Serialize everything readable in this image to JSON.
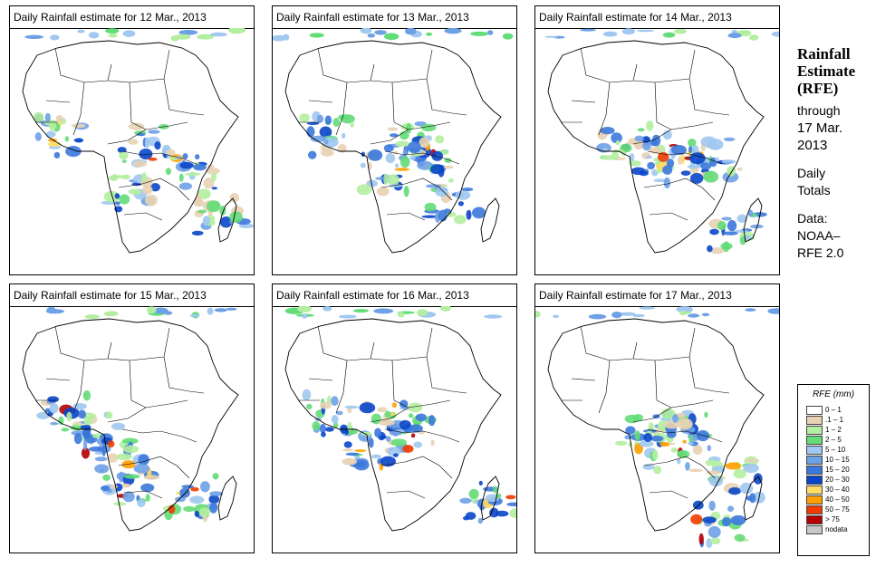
{
  "panels": [
    {
      "title": "Daily Rainfall estimate for  12 Mar., 2013",
      "day": 12
    },
    {
      "title": "Daily Rainfall estimate for  13 Mar., 2013",
      "day": 13
    },
    {
      "title": "Daily Rainfall estimate for  14 Mar., 2013",
      "day": 14
    },
    {
      "title": "Daily Rainfall estimate for  15 Mar., 2013",
      "day": 15
    },
    {
      "title": "Daily Rainfall estimate for  16 Mar., 2013",
      "day": 16
    },
    {
      "title": "Daily Rainfall estimate for  17 Mar., 2013",
      "day": 17
    }
  ],
  "side": {
    "title_line1": "Rainfall",
    "title_line2": "Estimate",
    "title_line3": "(RFE)",
    "through": "through",
    "end_date": "17 Mar.",
    "end_year": "2013",
    "period_line1": "Daily",
    "period_line2": "Totals",
    "source_label": "Data:",
    "source_line1": "NOAA–",
    "source_line2": "RFE 2.0"
  },
  "legend": {
    "title": "RFE (mm)",
    "entries": [
      {
        "label": "0 – 1",
        "color": "#ffffff"
      },
      {
        "label": ".1 – 1",
        "color": "#e8d2b4"
      },
      {
        "label": "1 – 2",
        "color": "#b4eea0"
      },
      {
        "label": "2 – 5",
        "color": "#64dc78"
      },
      {
        "label": "5 – 10",
        "color": "#a0c8f0"
      },
      {
        "label": "10 – 15",
        "color": "#6ea0e6"
      },
      {
        "label": "15 – 20",
        "color": "#3c78dc"
      },
      {
        "label": "20 – 30",
        "color": "#0a46c8"
      },
      {
        "label": "30 – 40",
        "color": "#ffdc64"
      },
      {
        "label": "40 – 50",
        "color": "#ffa000"
      },
      {
        "label": "50 – 75",
        "color": "#f03c00"
      },
      {
        "label": "> 75",
        "color": "#b40000"
      },
      {
        "label": "nodata",
        "color": "#c8c8c8"
      }
    ]
  }
}
